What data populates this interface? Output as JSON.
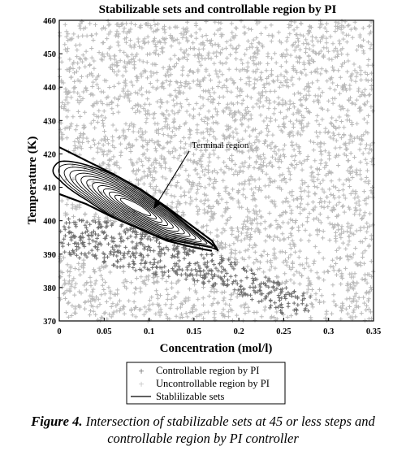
{
  "chart_data": {
    "type": "scatter",
    "title": "Stabilizable sets and controllable region by PI",
    "xlabel": "Concentration (mol/l)",
    "ylabel": "Temperature (K)",
    "xlim": [
      0,
      0.35
    ],
    "ylim": [
      370,
      460
    ],
    "x_ticks": [
      "0",
      "0.05",
      "0.1",
      "0.15",
      "0.2",
      "0.25",
      "0.3",
      "0.35"
    ],
    "y_ticks": [
      "370",
      "380",
      "390",
      "400",
      "410",
      "420",
      "430",
      "440",
      "450",
      "460"
    ],
    "grid": false,
    "legend_position": "bottom",
    "series": [
      {
        "name": "Controllable region by PI",
        "marker": "+",
        "color": "#6e6e6e",
        "region": {
          "lower_boundary": [
            [
              0,
              390
            ],
            [
              0.05,
              387
            ],
            [
              0.1,
              384
            ],
            [
              0.15,
              382
            ],
            [
              0.2,
              378
            ],
            [
              0.25,
              372
            ],
            [
              0.265,
              372
            ]
          ],
          "upper_boundary": [
            [
              0,
              401
            ],
            [
              0.05,
              400
            ],
            [
              0.1,
              397
            ],
            [
              0.15,
              393
            ],
            [
              0.2,
              387
            ],
            [
              0.25,
              381
            ],
            [
              0.28,
              378
            ]
          ]
        }
      },
      {
        "name": "Uncontrollable region by PI",
        "marker": "+",
        "color": "#b9b9b9",
        "region": {
          "lower_boundary": [
            [
              0,
              370
            ],
            [
              0.35,
              370
            ]
          ],
          "upper_boundary": [
            [
              0,
              460
            ],
            [
              0.35,
              460
            ]
          ]
        }
      },
      {
        "name": "Stablilizable sets",
        "marker": "line",
        "color": "#000000",
        "region": {
          "upper_edge": [
            [
              0,
              422
            ],
            [
              0.03,
              418
            ],
            [
              0.06,
              414
            ],
            [
              0.09,
              409.5
            ],
            [
              0.12,
              404
            ],
            [
              0.15,
              398
            ],
            [
              0.17,
              394
            ],
            [
              0.177,
              391
            ]
          ],
          "lower_edge": [
            [
              0,
              408
            ],
            [
              0.03,
              405
            ],
            [
              0.06,
              401
            ],
            [
              0.09,
              397.5
            ],
            [
              0.12,
              394
            ],
            [
              0.15,
              392
            ],
            [
              0.17,
              391
            ]
          ]
        }
      }
    ],
    "annotations": [
      {
        "text": "Terminal region",
        "arrow_to": [
          0.105,
          403.5
        ]
      }
    ]
  },
  "caption": {
    "label": "Figure 4.",
    "text": " Intersection of stabilizable sets at 45 or less steps and controllable region by PI controller"
  }
}
